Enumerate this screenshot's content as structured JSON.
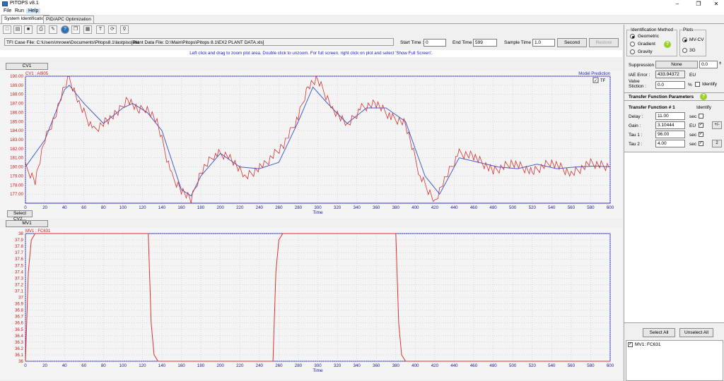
{
  "window": {
    "title": "PITOPS v8.1",
    "minimize": "–",
    "restore": "❐",
    "close": "✕"
  },
  "menu": [
    "File",
    "Run",
    "Help"
  ],
  "tabs": [
    "System Identification",
    "PID/APC Optimization"
  ],
  "toolbar": {
    "icons": [
      "new-icon",
      "open-icon",
      "save-icon",
      "print-icon",
      "pen-icon",
      "help-icon",
      "copy-icon",
      "export-icon",
      "text-icon",
      "refresh-icon",
      "zoom-icon"
    ]
  },
  "files": {
    "tfi_case": "TFI Case File: C:\\Users\\mrowe\\Documents\\Pitops8.1\\lastpiso.dat",
    "plant_data": "[Plant Data File: D:\\Main\\Pitops\\Pitops 8.1\\EX2 PLANT DATA.xls]"
  },
  "time": {
    "start_label": "Start Time :",
    "start_value": "0",
    "end_label": "End Time :",
    "end_value": "599",
    "sample_label": "Sample Time :",
    "sample_value": "1.0",
    "unit_button": "Second",
    "restore_button": "Restore"
  },
  "hint": "Left click and drag to zoom plot area. Double click to unzoom. For full screen, right click on plot and select 'Show Full Screen'.",
  "cv_plot": {
    "header_button": "CV1",
    "select_button": "Select CV2...",
    "series_label": "CV1 : AI905",
    "model_label": "Model Prediction",
    "tf_check": "TF",
    "xlabel": "Time",
    "colors": {
      "data": "#e03030",
      "model": "#4060d0",
      "axis": "#3030c0"
    }
  },
  "mv_plot": {
    "header_button": "MV1",
    "series_label": "MV1 : FC631",
    "xlabel": "Time"
  },
  "chart_data": [
    {
      "type": "line",
      "title": "CV1 : AI905",
      "xlabel": "Time",
      "ylabel": "",
      "xlim": [
        0,
        600
      ],
      "ylim": [
        176,
        190
      ],
      "x_ticks": [
        0,
        20,
        40,
        60,
        80,
        100,
        120,
        140,
        160,
        180,
        200,
        220,
        240,
        260,
        280,
        300,
        320,
        340,
        360,
        380,
        400,
        420,
        440,
        460,
        480,
        500,
        520,
        540,
        560,
        580,
        600
      ],
      "y_ticks": [
        "190.00",
        "189.00",
        "188.00",
        "187.00",
        "186.00",
        "185.00",
        "184.00",
        "183.00",
        "182.00",
        "181.00",
        "180.00",
        "179.00",
        "178.00",
        "177.00"
      ],
      "series": [
        {
          "name": "Model Prediction",
          "x": [
            0,
            20,
            40,
            45,
            60,
            80,
            100,
            110,
            125,
            140,
            160,
            170,
            180,
            200,
            220,
            240,
            260,
            280,
            295,
            310,
            330,
            350,
            370,
            390,
            410,
            425,
            445,
            465,
            485,
            505,
            525,
            545,
            565,
            585,
            600
          ],
          "y": [
            180,
            183,
            188.5,
            189,
            187,
            184.8,
            186.5,
            187,
            186,
            184,
            177.5,
            176.8,
            179,
            181.5,
            180,
            179.8,
            180.5,
            185,
            188.8,
            187,
            184.8,
            186.5,
            186.5,
            185,
            179,
            177,
            181,
            180.5,
            180,
            179.8,
            180.3,
            179.8,
            180,
            180.1,
            180
          ]
        },
        {
          "name": "CV1 : AI905",
          "x": [
            0,
            10,
            20,
            30,
            40,
            45,
            55,
            70,
            85,
            95,
            105,
            115,
            125,
            135,
            150,
            160,
            170,
            180,
            195,
            210,
            225,
            245,
            265,
            280,
            290,
            300,
            315,
            330,
            345,
            360,
            375,
            390,
            405,
            420,
            430,
            445,
            460,
            480,
            500,
            520,
            540,
            560,
            580,
            600
          ],
          "y": [
            180,
            178.5,
            183,
            185.5,
            188.8,
            189.8,
            187,
            184,
            185.2,
            186,
            187.6,
            186.2,
            186.5,
            185,
            179,
            177.5,
            176.3,
            179.5,
            181.5,
            181.2,
            178.8,
            180.2,
            182.5,
            185.5,
            189,
            189.6,
            186.5,
            184.5,
            186.5,
            187,
            185.5,
            184.8,
            179,
            176.2,
            178.6,
            181.5,
            181.2,
            179.5,
            180.5,
            179.4,
            180.6,
            179.2,
            180.4,
            180
          ]
        }
      ]
    },
    {
      "type": "line",
      "title": "MV1 : FC631",
      "xlabel": "Time",
      "ylabel": "",
      "xlim": [
        0,
        600
      ],
      "ylim": [
        36,
        38
      ],
      "x_ticks": [
        0,
        20,
        40,
        60,
        80,
        100,
        120,
        140,
        160,
        180,
        200,
        220,
        240,
        260,
        280,
        300,
        320,
        340,
        360,
        380,
        400,
        420,
        440,
        460,
        480,
        500,
        520,
        540,
        560,
        580,
        600
      ],
      "y_ticks": [
        "38",
        "37.9",
        "37.8",
        "37.7",
        "37.6",
        "37.5",
        "37.4",
        "37.3",
        "37.2",
        "37.1",
        "37",
        "36.9",
        "36.8",
        "36.7",
        "36.6",
        "36.5",
        "36.4",
        "36.3",
        "36.2",
        "36.1",
        "36"
      ],
      "series": [
        {
          "name": "MV1 : FC631",
          "x": [
            0,
            3,
            6,
            10,
            126,
            129,
            132,
            136,
            254,
            257,
            260,
            264,
            380,
            383,
            386,
            390,
            600
          ],
          "y": [
            36,
            37.4,
            37.9,
            38,
            38,
            36.6,
            36.1,
            36,
            36,
            37.4,
            37.9,
            38,
            38,
            36.6,
            36.1,
            36,
            36
          ]
        }
      ]
    }
  ],
  "right_panel": {
    "ident_method_title": "Identification Method",
    "methods": [
      "Geometric",
      "Gradient",
      "Gravity"
    ],
    "plots_title": "Plots",
    "plot_options": [
      "MV-CV",
      "3G"
    ],
    "suppression_label": "Suppression :",
    "suppression_button": "None",
    "suppression_value": "0.0",
    "iae_label": "IAE Error :",
    "iae_value": "433.94372",
    "iae_unit": "EU",
    "valve_label": "Valve Stiction :",
    "valve_value": "0.0",
    "valve_unit": "%",
    "identify_label": "Identify",
    "tf_params_title": "Transfer Function Parameters",
    "tf_title": "Transfer Function # 1",
    "identify_col": "Identify",
    "params": [
      {
        "label": "Delay :",
        "value": "11.00",
        "unit": "sec",
        "checked": false
      },
      {
        "label": "Gain :",
        "value": "3.10444",
        "unit": "EU",
        "checked": true
      },
      {
        "label": "Tau 1 :",
        "value": "96.00",
        "unit": "sec",
        "checked": true
      },
      {
        "label": "Tau 2 :",
        "value": "4.00",
        "unit": "sec",
        "checked": true
      }
    ],
    "plus_minus": "+/-",
    "two_button": "2",
    "select_all": "Select All",
    "unselect_all": "Unselect All",
    "mv_list": [
      "MV1: FC631"
    ]
  }
}
